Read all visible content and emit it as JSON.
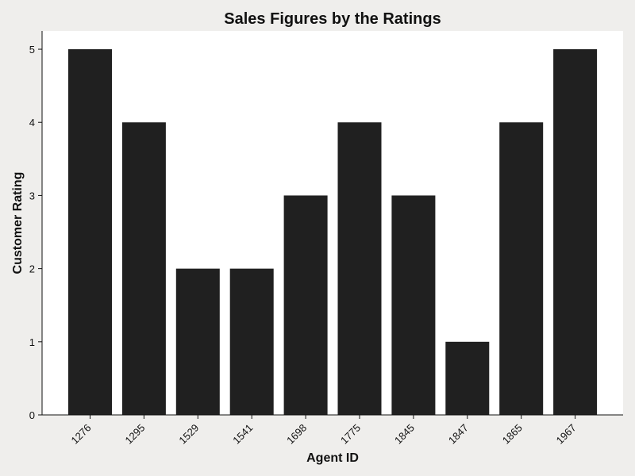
{
  "chart_data": {
    "type": "bar",
    "title": "Sales Figures by the Ratings",
    "xlabel": "Agent ID",
    "ylabel": "Customer Rating",
    "categories": [
      "1276",
      "1295",
      "1529",
      "1541",
      "1698",
      "1775",
      "1845",
      "1847",
      "1865",
      "1967"
    ],
    "values": [
      5,
      4,
      2,
      2,
      3,
      4,
      3,
      1,
      4,
      5
    ],
    "ylim": [
      0,
      5.25
    ],
    "yticks": [
      0,
      1,
      2,
      3,
      4,
      5
    ],
    "grid": false,
    "colors": {
      "bar": "#202020",
      "axis": "#111111",
      "plot_background": "#ffffff",
      "figure_background": "#efeeec"
    }
  }
}
